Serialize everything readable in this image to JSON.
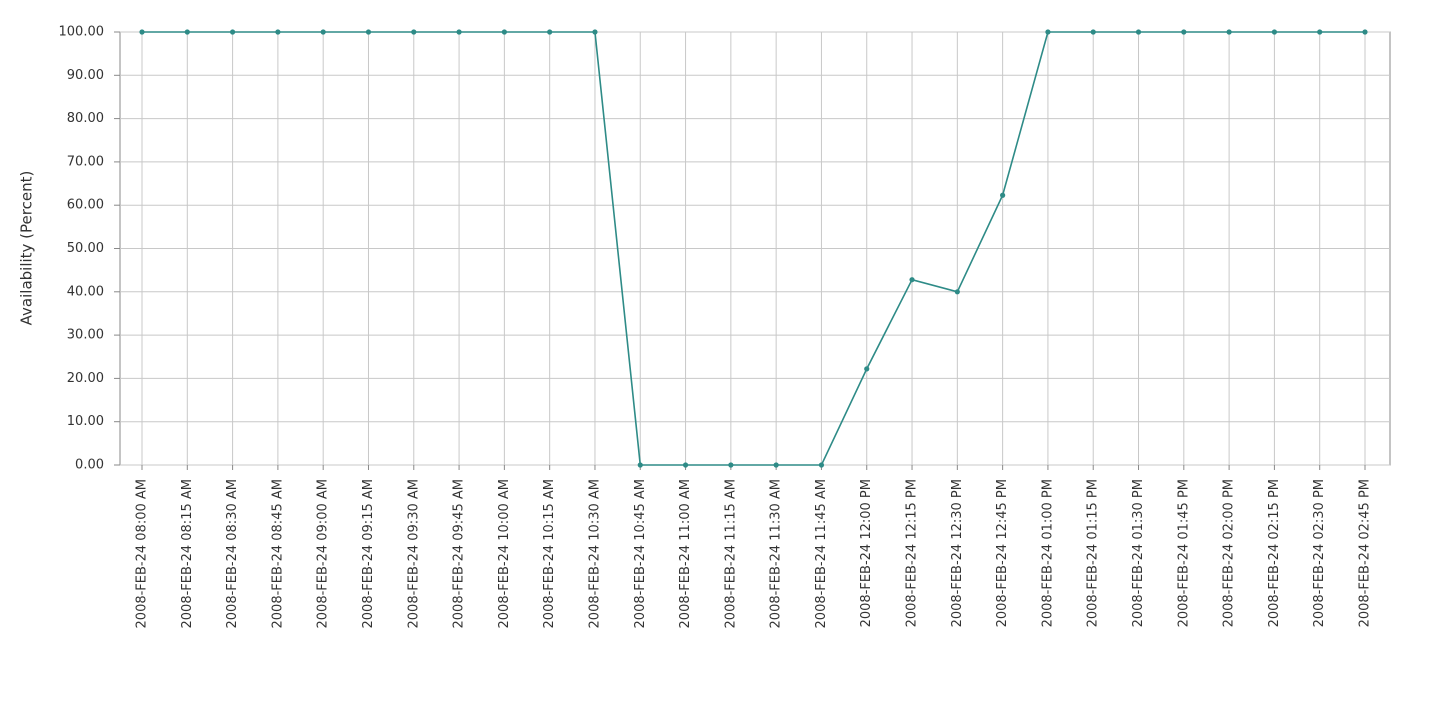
{
  "chart_data": {
    "type": "line",
    "y_label": "Availability (Percent)",
    "categories": [
      "2008-FEB-24 08:00 AM",
      "2008-FEB-24 08:15 AM",
      "2008-FEB-24 08:30 AM",
      "2008-FEB-24 08:45 AM",
      "2008-FEB-24 09:00 AM",
      "2008-FEB-24 09:15 AM",
      "2008-FEB-24 09:30 AM",
      "2008-FEB-24 09:45 AM",
      "2008-FEB-24 10:00 AM",
      "2008-FEB-24 10:15 AM",
      "2008-FEB-24 10:30 AM",
      "2008-FEB-24 10:45 AM",
      "2008-FEB-24 11:00 AM",
      "2008-FEB-24 11:15 AM",
      "2008-FEB-24 11:30 AM",
      "2008-FEB-24 11:45 AM",
      "2008-FEB-24 12:00 PM",
      "2008-FEB-24 12:15 PM",
      "2008-FEB-24 12:30 PM",
      "2008-FEB-24 12:45 PM",
      "2008-FEB-24 01:00 PM",
      "2008-FEB-24 01:15 PM",
      "2008-FEB-24 01:30 PM",
      "2008-FEB-24 01:45 PM",
      "2008-FEB-24 02:00 PM",
      "2008-FEB-24 02:15 PM",
      "2008-FEB-24 02:30 PM",
      "2008-FEB-24 02:45 PM"
    ],
    "values": [
      100,
      100,
      100,
      100,
      100,
      100,
      100,
      100,
      100,
      100,
      100,
      0,
      0,
      0,
      0,
      0,
      22.2,
      42.8,
      40,
      62.3,
      100,
      100,
      100,
      100,
      100,
      100,
      100,
      100
    ],
    "color": "#2e8b87",
    "ylim": [
      0,
      100
    ],
    "yticks": [
      {
        "value": 0,
        "label": "0.00"
      },
      {
        "value": 10,
        "label": "10.00"
      },
      {
        "value": 20,
        "label": "20.00"
      },
      {
        "value": 30,
        "label": "30.00"
      },
      {
        "value": 40,
        "label": "40.00"
      },
      {
        "value": 50,
        "label": "50.00"
      },
      {
        "value": 60,
        "label": "60.00"
      },
      {
        "value": 70,
        "label": "70.00"
      },
      {
        "value": 80,
        "label": "80.00"
      },
      {
        "value": 90,
        "label": "90.00"
      },
      {
        "value": 100,
        "label": "100.00"
      }
    ],
    "grid": true
  }
}
